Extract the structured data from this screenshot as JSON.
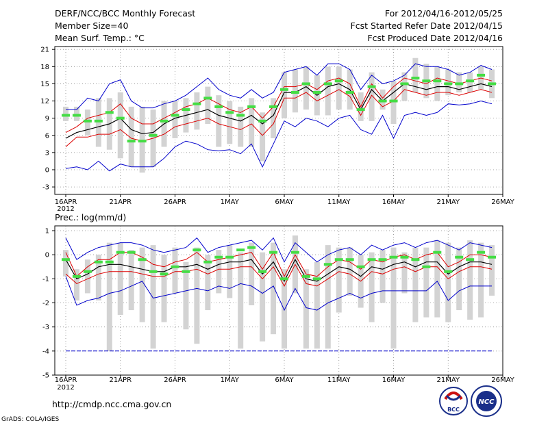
{
  "header": {
    "title": "DERF/NCC/BCC Monthly Forecast",
    "member_size": "Member Size=40",
    "variable": "Mean Surf. Temp.: °C",
    "period": "For 2012/04/16-2012/05/25",
    "started": "Fcst Started Refer Date 2012/04/15",
    "produced": "Fcst Produced Date 2012/04/16"
  },
  "footer": {
    "url": "http://cmdp.ncc.cma.gov.cn",
    "credit": "GrADS: COLA/IGES",
    "logo_bcc": "BCC",
    "logo_ncc": "NCC"
  },
  "colors": {
    "max_min": "#0000cc",
    "spread": "#dd0000",
    "mean": "#000000",
    "box": "#d3d3d3",
    "marker": "#44dd44",
    "grid": "#888888"
  },
  "chart_data": [
    {
      "type": "line",
      "title": "Mean Surf. Temp.: °C",
      "x_tick_labels": [
        "16APR",
        "21APR",
        "26APR",
        "1MAY",
        "6MAY",
        "11MAY",
        "16MAY",
        "21MAY",
        "26MAY"
      ],
      "x_year_label": "2012",
      "y_ticks": [
        -3,
        0,
        3,
        6,
        9,
        12,
        15,
        18,
        21
      ],
      "ylim": [
        -4.3,
        21.5
      ],
      "xlim": [
        0,
        40
      ],
      "grid": true,
      "series": [
        {
          "name": "max",
          "values": [
            10.5,
            10.5,
            12.5,
            12,
            15,
            15.7,
            12,
            10.8,
            10.8,
            11.5,
            12,
            13,
            14.5,
            16,
            14,
            13,
            12.5,
            14,
            12.5,
            13.5,
            17,
            17.5,
            18,
            16.5,
            18.5,
            18.5,
            17.5,
            14,
            16.5,
            15,
            15.5,
            16.5,
            18.5,
            18,
            18,
            17.5,
            16.5,
            17,
            18.2,
            17.5
          ]
        },
        {
          "name": "upper",
          "values": [
            6.5,
            7.5,
            9,
            9.5,
            10,
            11.5,
            9,
            8,
            8,
            9,
            10,
            11,
            11.5,
            12.5,
            11.5,
            10.5,
            10,
            11,
            9,
            11,
            14.5,
            14.5,
            15,
            14,
            15.5,
            16,
            15,
            11,
            15,
            12.5,
            14.5,
            16,
            15.5,
            15,
            16,
            15.5,
            15,
            15.5,
            16,
            15.5
          ]
        },
        {
          "name": "mean",
          "values": [
            5.5,
            6.5,
            7,
            7.5,
            8,
            9,
            7,
            6.3,
            6.5,
            8,
            9,
            9.5,
            10,
            10.5,
            9.5,
            9,
            8.5,
            9.5,
            8,
            9.5,
            13.5,
            13.5,
            14.5,
            13,
            14.5,
            15,
            14,
            10.5,
            14,
            12,
            13.5,
            15,
            14.5,
            14,
            14.5,
            14.5,
            14,
            14.5,
            15,
            14.5
          ]
        },
        {
          "name": "lower",
          "values": [
            4,
            5.7,
            5.7,
            6.2,
            6.2,
            7,
            5.5,
            5,
            5.5,
            6.2,
            7.5,
            8,
            8.5,
            9,
            8,
            7.5,
            7,
            8,
            6,
            8,
            12.5,
            12.5,
            13.5,
            12,
            13,
            14,
            12.8,
            9.5,
            13,
            11,
            12,
            14,
            13.5,
            13,
            13.5,
            13.5,
            13,
            13.5,
            14,
            13.5
          ]
        },
        {
          "name": "min",
          "values": [
            0.2,
            0.5,
            0,
            1.5,
            -0.2,
            1,
            0.5,
            0.5,
            0.5,
            2,
            4,
            5,
            4.5,
            3.5,
            3.3,
            3.5,
            2.8,
            4.5,
            0.5,
            4.5,
            8.5,
            7.5,
            9,
            8.5,
            7.5,
            9,
            9.5,
            7,
            6.2,
            9.5,
            5.5,
            9.5,
            10,
            9.5,
            10,
            11.5,
            11.3,
            11.5,
            12,
            11.5
          ]
        }
      ],
      "boxes": [
        [
          8.5,
          11
        ],
        [
          8.5,
          11
        ],
        [
          6,
          10.5
        ],
        [
          4,
          12.5
        ],
        [
          3.5,
          12.5
        ],
        [
          2,
          13.5
        ],
        [
          0.5,
          11
        ],
        [
          -0.5,
          11
        ],
        [
          0.5,
          10.5
        ],
        [
          4,
          12
        ],
        [
          5.5,
          12
        ],
        [
          6.5,
          12.5
        ],
        [
          7,
          13.5
        ],
        [
          8,
          14.5
        ],
        [
          4,
          13
        ],
        [
          4.5,
          12
        ],
        [
          4,
          11
        ],
        [
          4,
          12.5
        ],
        [
          1.5,
          10
        ],
        [
          5.5,
          12.5
        ],
        [
          9,
          17
        ],
        [
          10,
          17.5
        ],
        [
          10.5,
          18
        ],
        [
          9.5,
          16.5
        ],
        [
          9.5,
          18
        ],
        [
          10.5,
          18
        ],
        [
          10.5,
          17.5
        ],
        [
          8.5,
          13.5
        ],
        [
          8.5,
          17
        ],
        [
          10.5,
          14
        ],
        [
          8,
          15.5
        ],
        [
          12,
          17
        ],
        [
          13.5,
          19.5
        ],
        [
          12.5,
          18.5
        ],
        [
          12,
          18
        ],
        [
          13,
          17.5
        ],
        [
          13.5,
          17
        ],
        [
          13.5,
          17
        ],
        [
          14,
          18
        ],
        [
          12.5,
          17.5
        ]
      ],
      "markers": [
        9.5,
        9.5,
        8.5,
        8.5,
        10,
        9,
        5,
        5,
        6,
        8.5,
        9.5,
        10.5,
        11.5,
        12.5,
        11,
        10,
        9.5,
        11,
        8.5,
        11,
        14,
        13.5,
        15,
        13.5,
        15,
        15.5,
        13.5,
        10.5,
        14.5,
        12,
        12,
        15,
        16,
        15.5,
        15.5,
        15,
        15,
        15.5,
        16.5,
        15
      ]
    },
    {
      "type": "line",
      "title": "Prec.: log(mm/d)",
      "x_tick_labels": [
        "16APR",
        "21APR",
        "26APR",
        "1MAY",
        "6MAY",
        "11MAY",
        "16MAY",
        "21MAY",
        "26MAY"
      ],
      "x_year_label": "2012",
      "y_ticks": [
        -5,
        -4,
        -3,
        -2,
        -1,
        0,
        1
      ],
      "ylim": [
        -5,
        1.2
      ],
      "xlim": [
        0,
        40
      ],
      "grid": true,
      "series": [
        {
          "name": "max",
          "values": [
            0.7,
            -0.2,
            0.1,
            0.3,
            0.4,
            0.5,
            0.5,
            0.4,
            0.2,
            0.1,
            0.2,
            0.3,
            0.7,
            0.1,
            0.3,
            0.4,
            0.5,
            0.6,
            0.2,
            0.7,
            -0.3,
            0.5,
            0.1,
            -0.3,
            0,
            0.2,
            0.3,
            0,
            0.4,
            0.2,
            0.4,
            0.5,
            0.3,
            0.5,
            0.6,
            0.4,
            0.2,
            0.5,
            0.4,
            0.3
          ]
        },
        {
          "name": "upper",
          "values": [
            0.1,
            -0.9,
            -0.5,
            -0.2,
            -0.2,
            0.1,
            0.1,
            -0.1,
            -0.4,
            -0.5,
            -0.3,
            -0.2,
            0.1,
            -0.3,
            -0.2,
            -0.1,
            0,
            0.1,
            -0.6,
            0.1,
            -0.9,
            0,
            -0.8,
            -0.9,
            -0.5,
            -0.2,
            -0.3,
            -0.6,
            -0.2,
            -0.3,
            -0.1,
            0,
            -0.2,
            0,
            0.1,
            -0.5,
            -0.3,
            0,
            0,
            -0.1
          ]
        },
        {
          "name": "mean",
          "values": [
            -0.2,
            -1,
            -0.8,
            -0.5,
            -0.4,
            -0.4,
            -0.5,
            -0.6,
            -0.7,
            -0.7,
            -0.5,
            -0.5,
            -0.4,
            -0.6,
            -0.4,
            -0.3,
            -0.3,
            -0.2,
            -0.8,
            -0.3,
            -1.1,
            -0.2,
            -1,
            -1.1,
            -0.8,
            -0.5,
            -0.6,
            -0.9,
            -0.5,
            -0.6,
            -0.4,
            -0.3,
            -0.5,
            -0.3,
            -0.3,
            -0.8,
            -0.5,
            -0.3,
            -0.3,
            -0.4
          ]
        },
        {
          "name": "lower",
          "values": [
            -0.8,
            -1.2,
            -1,
            -0.8,
            -0.7,
            -0.7,
            -0.7,
            -0.8,
            -0.9,
            -0.9,
            -0.7,
            -0.7,
            -0.6,
            -0.8,
            -0.6,
            -0.6,
            -0.5,
            -0.5,
            -1,
            -0.5,
            -1.3,
            -0.4,
            -1.2,
            -1.3,
            -1,
            -0.7,
            -0.8,
            -1.1,
            -0.7,
            -0.8,
            -0.6,
            -0.5,
            -0.7,
            -0.5,
            -0.5,
            -1,
            -0.7,
            -0.5,
            -0.5,
            -0.6
          ]
        },
        {
          "name": "min",
          "values": [
            -0.9,
            -2.1,
            -1.9,
            -1.8,
            -1.6,
            -1.5,
            -1.3,
            -1.1,
            -1.8,
            -1.7,
            -1.6,
            -1.5,
            -1.4,
            -1.5,
            -1.3,
            -1.4,
            -1.2,
            -1.3,
            -1.6,
            -1.3,
            -2.3,
            -1.4,
            -2.2,
            -2.3,
            -2,
            -1.8,
            -1.6,
            -1.8,
            -1.6,
            -1.5,
            -1.5,
            -1.5,
            -1.5,
            -1.5,
            -1.1,
            -1.9,
            -1.5,
            -1.3,
            -1.3,
            -1.3
          ]
        },
        {
          "name": "constant",
          "values": [
            -4,
            -4,
            -4,
            -4,
            -4,
            -4,
            -4,
            -4,
            -4,
            -4,
            -4,
            -4,
            -4,
            -4,
            -4,
            -4,
            -4,
            -4,
            -4,
            -4,
            -4,
            -4,
            -4,
            -4,
            -4,
            -4,
            -4,
            -4,
            -4,
            -4,
            -4,
            -4,
            -4,
            -4,
            -4,
            -4,
            -4,
            -4,
            -4,
            -4
          ]
        }
      ],
      "boxes": [
        [
          -0.9,
          0.2
        ],
        [
          -1.9,
          -0.6
        ],
        [
          -1.6,
          -0.2
        ],
        [
          -1.9,
          0
        ],
        [
          -4,
          0.5
        ],
        [
          -2.5,
          0.5
        ],
        [
          -2.3,
          0.2
        ],
        [
          -2.8,
          0.3
        ],
        [
          -3.9,
          0.4
        ],
        [
          -2.8,
          0
        ],
        [
          -1.6,
          0.3
        ],
        [
          -3.1,
          -0.3
        ],
        [
          -3.7,
          0.3
        ],
        [
          -2.3,
          0
        ],
        [
          -1.6,
          0.2
        ],
        [
          -1.8,
          0.4
        ],
        [
          -3.9,
          0.1
        ],
        [
          -2.1,
          0.5
        ],
        [
          -3.6,
          0.1
        ],
        [
          -3.3,
          0.5
        ],
        [
          -3.9,
          -0.6
        ],
        [
          -1.6,
          0.8
        ],
        [
          -3.9,
          -0.6
        ],
        [
          -3.9,
          -0.3
        ],
        [
          -3.9,
          0.4
        ],
        [
          -2.4,
          0.3
        ],
        [
          -1.7,
          0.3
        ],
        [
          -2.2,
          0
        ],
        [
          -2.8,
          0.1
        ],
        [
          -2,
          0.2
        ],
        [
          -3.9,
          0.3
        ],
        [
          -1.6,
          0.1
        ],
        [
          -2.8,
          0.3
        ],
        [
          -2.6,
          0.3
        ],
        [
          -2.6,
          0.6
        ],
        [
          -2.8,
          0.5
        ],
        [
          -2.3,
          0.3
        ],
        [
          -2.7,
          0.6
        ],
        [
          -2.6,
          0.5
        ],
        [
          -1.7,
          0.4
        ]
      ],
      "markers": [
        -0.2,
        -0.9,
        -0.7,
        -0.3,
        -0.3,
        0.1,
        0.1,
        -0.2,
        -0.7,
        -0.8,
        -0.5,
        -0.7,
        0.2,
        -0.3,
        -0.1,
        -0.1,
        0.2,
        0.3,
        -0.7,
        0.1,
        -1,
        0.1,
        -0.9,
        -1,
        -0.4,
        -0.2,
        -0.2,
        -0.5,
        -0.2,
        -0.2,
        -0.1,
        -0.1,
        -0.2,
        -0.5,
        0.1,
        -0.7,
        -0.1,
        -0.2,
        0.1,
        -0.1
      ]
    }
  ]
}
